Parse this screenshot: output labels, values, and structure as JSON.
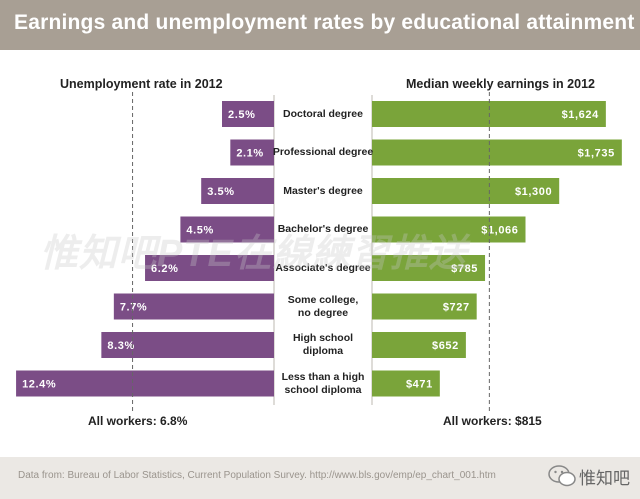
{
  "header": {
    "title": "Earnings and unemployment rates by educational attainment"
  },
  "panels": {
    "left_title": "Unemployment rate in 2012",
    "right_title": "Median weekly earnings in 2012",
    "left_reference": "All workers: 6.8%",
    "right_reference": "All workers: $815"
  },
  "footer": {
    "source": "Data from: Bureau of Labor Statistics, Current Population Survey. http://www.bls.gov/emp/ep_chart_001.htm"
  },
  "watermark": {
    "text": "惟知吧PTE在線練習推送",
    "brand": "惟知吧"
  },
  "colors": {
    "unemployment": "#7b4d86",
    "earnings": "#7aa43a",
    "header": "#a89f94"
  },
  "chart_data": [
    {
      "type": "bar",
      "title": "Unemployment rate in 2012",
      "orientation": "horizontal",
      "direction": "right-to-left",
      "categories": [
        "Doctoral degree",
        "Professional degree",
        "Master's degree",
        "Bachelor's degree",
        "Associate's degree",
        "Some college, no degree",
        "High school diploma",
        "Less than a high school diploma"
      ],
      "values": [
        2.5,
        2.1,
        3.5,
        4.5,
        6.2,
        7.7,
        8.3,
        12.4
      ],
      "value_labels": [
        "2.5%",
        "2.1%",
        "3.5%",
        "4.5%",
        "6.2%",
        "7.7%",
        "8.3%",
        "12.4%"
      ],
      "reference": {
        "value": 6.8,
        "label": "All workers: 6.8%"
      },
      "unit": "%",
      "color": "#7b4d86"
    },
    {
      "type": "bar",
      "title": "Median weekly earnings in 2012",
      "orientation": "horizontal",
      "direction": "left-to-right",
      "categories": [
        "Doctoral degree",
        "Professional degree",
        "Master's degree",
        "Bachelor's degree",
        "Associate's degree",
        "Some college, no degree",
        "High school diploma",
        "Less than a high school diploma"
      ],
      "values": [
        1624,
        1735,
        1300,
        1066,
        785,
        727,
        652,
        471
      ],
      "value_labels": [
        "$1,624",
        "$1,735",
        "$1,300",
        "$1,066",
        "$785",
        "$727",
        "$652",
        "$471"
      ],
      "reference": {
        "value": 815,
        "label": "All workers: $815"
      },
      "unit": "$",
      "color": "#7aa43a"
    }
  ],
  "category_lines": [
    [
      "Doctoral degree"
    ],
    [
      "Professional degree"
    ],
    [
      "Master's degree"
    ],
    [
      "Bachelor's degree"
    ],
    [
      "Associate's degree"
    ],
    [
      "Some college,",
      "no degree"
    ],
    [
      "High school",
      "diploma"
    ],
    [
      "Less than a high",
      "school diploma"
    ]
  ]
}
